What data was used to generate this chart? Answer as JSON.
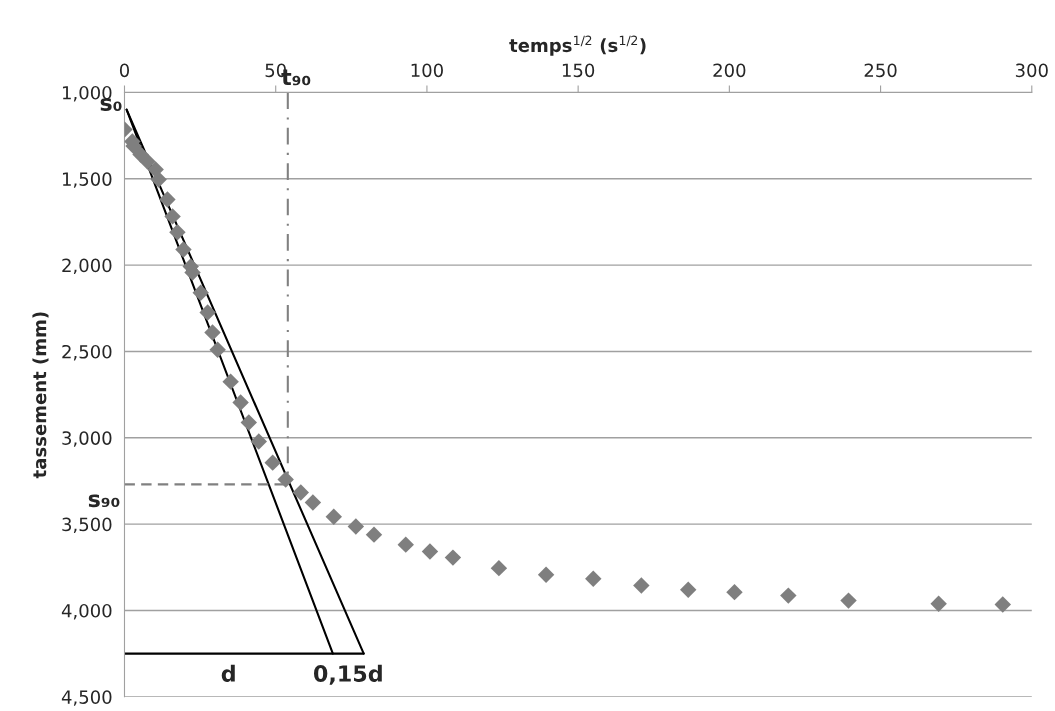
{
  "chart_data": {
    "type": "scatter",
    "xlabel": "temps$^{1/2}$ (s$^{1/2}$)",
    "ylabel": "tassement (mm)",
    "xlim": [
      0,
      300
    ],
    "xticks": [
      0,
      50,
      100,
      150,
      200,
      250,
      300
    ],
    "ylim": [
      4500,
      1000
    ],
    "yticks": [
      {
        "value": 1000,
        "label": "1,000"
      },
      {
        "value": 1500,
        "label": "1,500"
      },
      {
        "value": 2000,
        "label": "2,000"
      },
      {
        "value": 2500,
        "label": "2,500"
      },
      {
        "value": 3000,
        "label": "3,000"
      },
      {
        "value": 3500,
        "label": "3,500"
      },
      {
        "value": 4000,
        "label": "4,000"
      },
      {
        "value": 4500,
        "label": "4,500"
      }
    ],
    "grid": "y",
    "ref_lines": [
      {
        "axis": "x",
        "value": 54,
        "label": "t₉₀",
        "color": "#808080",
        "line_style": "dashdot"
      },
      {
        "axis": "y",
        "value": 3270,
        "label": "s₉₀",
        "color": "#808080",
        "line_style": "dashed"
      }
    ],
    "series": [
      {
        "type": "scatter",
        "color": "#7f7f7f",
        "marker": "diamond",
        "x": [
          0,
          2.6,
          3.0,
          5.3,
          7.6,
          10.3,
          11.3,
          14.2,
          15.9,
          17.5,
          19.5,
          21.9,
          22.5,
          25.2,
          27.5,
          29.1,
          30.8,
          35.1,
          38.4,
          41.1,
          44.4,
          49.0,
          53.3,
          58.3,
          62.3,
          69.2,
          76.5,
          82.5,
          93,
          101,
          108.6,
          123.8,
          139.4,
          155,
          170.9,
          186.4,
          201.7,
          219.5,
          239.4,
          269.2,
          290.4
        ],
        "values": [
          1215,
          1284,
          1310,
          1360,
          1400,
          1446,
          1504,
          1620,
          1718,
          1810,
          1910,
          2008,
          2043,
          2160,
          2275,
          2390,
          2490,
          2675,
          2796,
          2912,
          3022,
          3144,
          3242,
          3317,
          3375,
          3457,
          3514,
          3561,
          3619,
          3659,
          3694,
          3755,
          3793,
          3816,
          3856,
          3880,
          3894,
          3914,
          3943,
          3961,
          3966
        ]
      },
      {
        "type": "line",
        "color": "#000000",
        "line_style": "solid",
        "marker": "none",
        "x": [
          0.7,
          68.9
        ],
        "values": [
          1100,
          4250
        ]
      },
      {
        "type": "line",
        "color": "#000000",
        "line_style": "solid",
        "marker": "none",
        "x": [
          0.7,
          79.1
        ],
        "values": [
          1100,
          4250
        ]
      },
      {
        "type": "line",
        "color": "#000000",
        "line_style": "solid",
        "marker": "none",
        "x": [
          0,
          68.9,
          79.1
        ],
        "values": [
          4250,
          4250,
          4250
        ]
      }
    ],
    "annotations": [
      {
        "text": "s₀",
        "x": 0.7,
        "y": 1100
      },
      {
        "text": "d",
        "x": 34.45,
        "y": 4250
      },
      {
        "text": "0,15d",
        "x": 74,
        "y": 4250
      }
    ]
  }
}
